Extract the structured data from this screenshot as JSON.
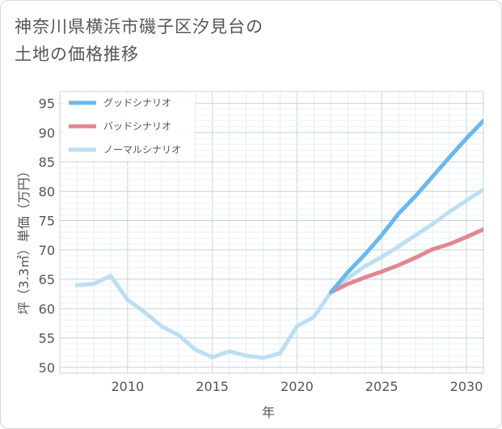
{
  "title": {
    "line1": "神奈川県横浜市磯子区汐見台の",
    "line2": "土地の価格推移"
  },
  "chart_data": {
    "type": "line",
    "title": "神奈川県横浜市磯子区汐見台の土地の価格推移",
    "xlabel": "年",
    "ylabel": "坪（3.3㎡）単価（万円）",
    "xlim": [
      2006,
      2031
    ],
    "ylim": [
      49,
      97
    ],
    "x_ticks": [
      2010,
      2015,
      2020,
      2025,
      2030
    ],
    "y_ticks": [
      50,
      55,
      60,
      65,
      70,
      75,
      80,
      85,
      90,
      95
    ],
    "grid": true,
    "legend_position": "top-left",
    "series": [
      {
        "name": "グッドシナリオ",
        "color": "#6bb8ec",
        "x": [
          2022,
          2023,
          2024,
          2025,
          2026,
          2027,
          2028,
          2029,
          2030,
          2031
        ],
        "values": [
          62.8,
          66.2,
          69.2,
          72.5,
          76.2,
          79.2,
          82.5,
          85.8,
          89.0,
          92.0
        ]
      },
      {
        "name": "バッドシナリオ",
        "color": "#e0888f",
        "x": [
          2022,
          2023,
          2024,
          2025,
          2026,
          2027,
          2028,
          2029,
          2030,
          2031
        ],
        "values": [
          62.8,
          64.2,
          65.3,
          66.3,
          67.4,
          68.7,
          70.1,
          71.0,
          72.2,
          73.5
        ]
      },
      {
        "name": "ノーマルシナリオ",
        "color": "#bcdff0",
        "x": [
          2007,
          2008,
          2009,
          2010,
          2011,
          2012,
          2013,
          2014,
          2015,
          2016,
          2017,
          2018,
          2019,
          2020,
          2021,
          2022,
          2023,
          2024,
          2025,
          2026,
          2027,
          2028,
          2029,
          2030,
          2031
        ],
        "values": [
          64.0,
          64.2,
          65.6,
          61.5,
          59.4,
          57.0,
          55.5,
          53.0,
          51.7,
          52.7,
          52.0,
          51.6,
          52.4,
          57.0,
          58.6,
          62.8,
          65.2,
          67.2,
          68.8,
          70.6,
          72.5,
          74.4,
          76.5,
          78.4,
          80.3
        ]
      }
    ]
  }
}
